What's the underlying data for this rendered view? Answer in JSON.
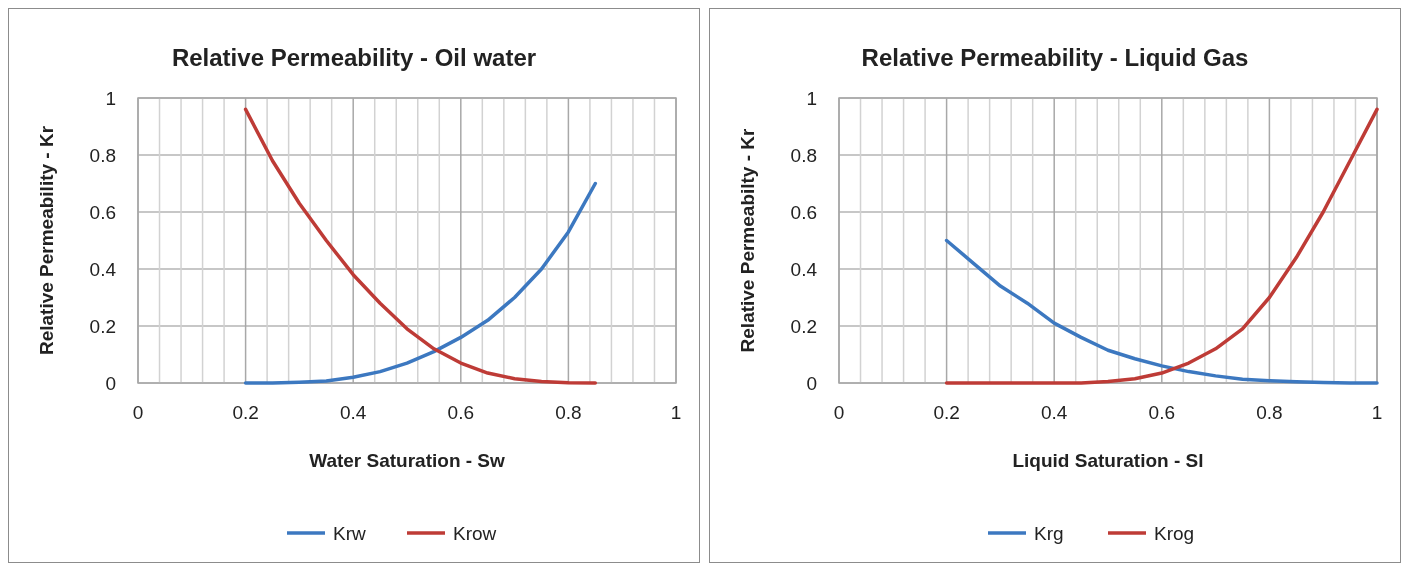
{
  "chart_data": [
    {
      "type": "line",
      "title": "Relative Permeability - Oil water",
      "xlabel": "Water Saturation - Sw",
      "ylabel": "Relative Permeability - Kr",
      "x": [
        0.2,
        0.25,
        0.3,
        0.35,
        0.4,
        0.45,
        0.5,
        0.55,
        0.6,
        0.65,
        0.7,
        0.75,
        0.8,
        0.85
      ],
      "series": [
        {
          "name": "Krw",
          "color": "#3c78c0",
          "values": [
            0,
            0,
            0.003,
            0.007,
            0.02,
            0.04,
            0.07,
            0.11,
            0.16,
            0.22,
            0.3,
            0.4,
            0.53,
            0.7
          ]
        },
        {
          "name": "Krow",
          "color": "#be3b36",
          "values": [
            0.96,
            0.78,
            0.63,
            0.5,
            0.38,
            0.28,
            0.19,
            0.12,
            0.07,
            0.035,
            0.015,
            0.005,
            0.001,
            0
          ]
        }
      ],
      "xlim": [
        0,
        1
      ],
      "xticks": [
        0,
        {
          "value": 0.04,
          "label": null
        },
        {
          "value": 0.08,
          "label": null
        },
        {
          "value": 0.12,
          "label": null
        },
        {
          "value": 0.16,
          "label": null
        },
        0.2,
        {
          "value": 0.24,
          "label": null
        },
        {
          "value": 0.28,
          "label": null
        },
        {
          "value": 0.32,
          "label": null
        },
        {
          "value": 0.36,
          "label": null
        },
        0.4,
        {
          "value": 0.44,
          "label": null
        },
        {
          "value": 0.48,
          "label": null
        },
        {
          "value": 0.52,
          "label": null
        },
        {
          "value": 0.56,
          "label": null
        },
        0.6,
        {
          "value": 0.64,
          "label": null
        },
        {
          "value": 0.68,
          "label": null
        },
        {
          "value": 0.72,
          "label": null
        },
        {
          "value": 0.76,
          "label": null
        },
        0.8,
        {
          "value": 0.84,
          "label": null
        },
        {
          "value": 0.88,
          "label": null
        },
        {
          "value": 0.92,
          "label": null
        },
        {
          "value": 0.96,
          "label": null
        },
        1
      ],
      "ylim": [
        0,
        1
      ],
      "yticks": [
        0,
        0.2,
        0.4,
        0.6,
        0.8,
        1
      ],
      "grid": true,
      "legend": "bottom",
      "marker": "none",
      "line_style": "solid"
    },
    {
      "type": "line",
      "title": "Relative Permeability - Liquid Gas",
      "xlabel": "Liquid Saturation - Sl",
      "ylabel": "Relative Permeabilty - Kr",
      "x": [
        0.2,
        0.25,
        0.3,
        0.35,
        0.4,
        0.45,
        0.5,
        0.55,
        0.6,
        0.65,
        0.7,
        0.75,
        0.8,
        0.85,
        0.9,
        0.95,
        1
      ],
      "series": [
        {
          "name": "Krg",
          "color": "#3c78c0",
          "values": [
            0.5,
            0.42,
            0.34,
            0.28,
            0.21,
            0.16,
            0.115,
            0.085,
            0.06,
            0.04,
            0.025,
            0.013,
            0.008,
            0.004,
            0.002,
            0,
            0
          ]
        },
        {
          "name": "Krog",
          "color": "#be3b36",
          "values": [
            0,
            0,
            0,
            0,
            0,
            0,
            0.005,
            0.015,
            0.035,
            0.07,
            0.12,
            0.19,
            0.3,
            0.44,
            0.6,
            0.78,
            0.96
          ]
        }
      ],
      "xlim": [
        0,
        1
      ],
      "xticks": [
        0,
        {
          "value": 0.04,
          "label": null
        },
        {
          "value": 0.08,
          "label": null
        },
        {
          "value": 0.12,
          "label": null
        },
        {
          "value": 0.16,
          "label": null
        },
        0.2,
        {
          "value": 0.24,
          "label": null
        },
        {
          "value": 0.28,
          "label": null
        },
        {
          "value": 0.32,
          "label": null
        },
        {
          "value": 0.36,
          "label": null
        },
        0.4,
        {
          "value": 0.44,
          "label": null
        },
        {
          "value": 0.48,
          "label": null
        },
        {
          "value": 0.52,
          "label": null
        },
        {
          "value": 0.56,
          "label": null
        },
        0.6,
        {
          "value": 0.64,
          "label": null
        },
        {
          "value": 0.68,
          "label": null
        },
        {
          "value": 0.72,
          "label": null
        },
        {
          "value": 0.76,
          "label": null
        },
        0.8,
        {
          "value": 0.84,
          "label": null
        },
        {
          "value": 0.88,
          "label": null
        },
        {
          "value": 0.92,
          "label": null
        },
        {
          "value": 0.96,
          "label": null
        },
        1
      ],
      "ylim": [
        0,
        1
      ],
      "yticks": [
        0,
        0.2,
        0.4,
        0.6,
        0.8,
        1
      ],
      "grid": true,
      "legend": "bottom",
      "marker": "none",
      "line_style": "solid"
    }
  ]
}
